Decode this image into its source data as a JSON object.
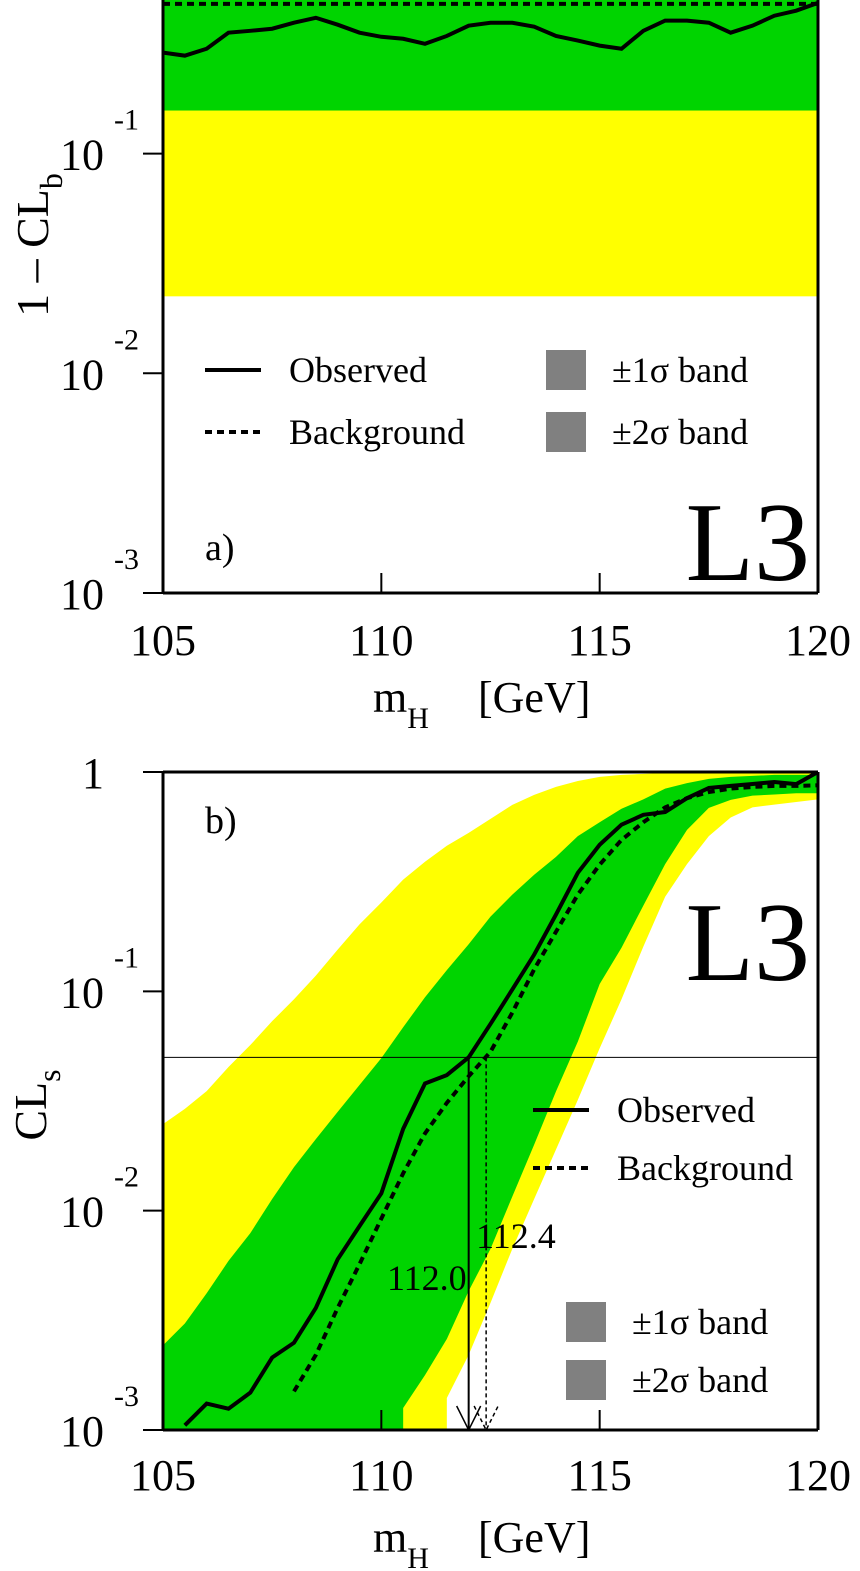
{
  "chart_data": [
    {
      "type": "line",
      "panel_label": "a)",
      "experiment": "L3",
      "xlabel": {
        "text": "m",
        "sub": "H",
        "unit": "[GeV]"
      },
      "ylabel": {
        "text": "1 – CL",
        "sub": "b"
      },
      "xlim": [
        105,
        120
      ],
      "ylim": [
        0.001,
        0.5
      ],
      "log_y": true,
      "xticks": [
        105,
        110,
        115,
        120
      ],
      "yticks": [
        {
          "value": 0.001,
          "label": "10",
          "exponent": "-3"
        },
        {
          "value": 0.01,
          "label": "10",
          "exponent": "-2"
        },
        {
          "value": 0.1,
          "label": "10",
          "exponent": "-1"
        }
      ],
      "x": [
        105,
        105.5,
        106,
        106.5,
        107,
        107.5,
        108,
        108.5,
        109,
        109.5,
        110,
        110.5,
        111,
        111.5,
        112,
        112.5,
        113,
        113.5,
        114,
        114.5,
        115,
        115.5,
        116,
        116.5,
        117,
        117.5,
        118,
        118.5,
        119,
        119.5,
        120
      ],
      "series": [
        {
          "name": "Observed",
          "color": "#000000",
          "style": "solid",
          "values": [
            0.288,
            0.279,
            0.3,
            0.355,
            0.362,
            0.37,
            0.394,
            0.415,
            0.386,
            0.355,
            0.34,
            0.333,
            0.316,
            0.343,
            0.382,
            0.394,
            0.394,
            0.378,
            0.343,
            0.327,
            0.31,
            0.3,
            0.362,
            0.403,
            0.403,
            0.394,
            0.355,
            0.382,
            0.424,
            0.447,
            0.485
          ]
        },
        {
          "name": "Background",
          "color": "#000000",
          "style": "dashed",
          "values": [
            0.48,
            0.48,
            0.48,
            0.48,
            0.48,
            0.48,
            0.48,
            0.48,
            0.48,
            0.48,
            0.48,
            0.48,
            0.48,
            0.48,
            0.48,
            0.48,
            0.48,
            0.48,
            0.48,
            0.48,
            0.48,
            0.48,
            0.48,
            0.48,
            0.48,
            0.48,
            0.48,
            0.48,
            0.48,
            0.48,
            0.48
          ]
        }
      ],
      "bands": [
        {
          "name": "±1σ band",
          "color": "#00d400",
          "lower": 0.157
        },
        {
          "name": "±2σ band",
          "color": "#ffff00",
          "lower": 0.0224
        }
      ],
      "legend_swatch_color": "#808080"
    },
    {
      "type": "line",
      "panel_label": "b)",
      "experiment": "L3",
      "xlabel": {
        "text": "m",
        "sub": "H",
        "unit": "[GeV]"
      },
      "ylabel": {
        "text": "CL",
        "sub": "s"
      },
      "xlim": [
        105,
        120
      ],
      "ylim": [
        0.001,
        1
      ],
      "log_y": true,
      "xticks": [
        105,
        110,
        115,
        120
      ],
      "yticks": [
        {
          "value": 0.001,
          "label": "10",
          "exponent": "-3"
        },
        {
          "value": 0.01,
          "label": "10",
          "exponent": "-2"
        },
        {
          "value": 0.1,
          "label": "10",
          "exponent": "-1"
        },
        1
      ],
      "x": [
        105,
        105.5,
        106,
        106.5,
        107,
        107.5,
        108,
        108.5,
        109,
        109.5,
        110,
        110.5,
        111,
        111.5,
        112,
        112.5,
        113,
        113.5,
        114,
        114.5,
        115,
        115.5,
        116,
        116.5,
        117,
        117.5,
        118,
        118.5,
        119,
        119.5,
        120
      ],
      "series": [
        {
          "name": "Observed",
          "color": "#000000",
          "style": "solid",
          "values": [
            null,
            0.00105,
            0.00132,
            0.00125,
            0.00148,
            0.00214,
            0.0025,
            0.0036,
            0.006,
            0.0085,
            0.012,
            0.0236,
            0.038,
            0.0415,
            0.05,
            0.071,
            0.102,
            0.147,
            0.224,
            0.347,
            0.466,
            0.575,
            0.638,
            0.657,
            0.76,
            0.846,
            0.864,
            0.882,
            0.9,
            0.88,
            1.0
          ]
        },
        {
          "name": "Background",
          "color": "#000000",
          "style": "dashed",
          "values": [
            null,
            null,
            null,
            null,
            null,
            null,
            0.0015,
            0.0022,
            0.0036,
            0.0057,
            0.0092,
            0.0148,
            0.0225,
            0.031,
            0.041,
            0.053,
            0.08,
            0.126,
            0.187,
            0.276,
            0.378,
            0.49,
            0.59,
            0.69,
            0.76,
            0.81,
            0.84,
            0.855,
            0.864,
            0.864,
            0.87
          ]
        }
      ],
      "bands": [
        {
          "name": "±1σ band",
          "color": "#00d400",
          "upper": [
            0.00243,
            0.00306,
            0.0042,
            0.0059,
            0.0079,
            0.0113,
            0.0158,
            0.0212,
            0.0282,
            0.0374,
            0.0496,
            0.0686,
            0.094,
            0.125,
            0.164,
            0.219,
            0.276,
            0.34,
            0.41,
            0.51,
            0.59,
            0.68,
            0.75,
            0.84,
            0.89,
            0.93,
            0.95,
            0.96,
            0.97,
            0.97,
            0.97
          ],
          "lower": [
            null,
            null,
            null,
            null,
            null,
            null,
            null,
            null,
            null,
            null,
            null,
            0.00126,
            0.00178,
            0.0026,
            0.0043,
            0.0067,
            0.0116,
            0.02,
            0.035,
            0.059,
            0.108,
            0.158,
            0.246,
            0.38,
            0.545,
            0.686,
            0.746,
            0.78,
            0.79,
            0.8,
            0.8
          ]
        },
        {
          "name": "±2σ band",
          "color": "#ffff00",
          "upper": [
            0.0248,
            0.0291,
            0.0351,
            0.0452,
            0.0569,
            0.0731,
            0.092,
            0.118,
            0.155,
            0.202,
            0.254,
            0.323,
            0.39,
            0.461,
            0.528,
            0.611,
            0.708,
            0.786,
            0.855,
            0.91,
            0.95,
            0.97,
            0.98,
            0.99,
            0.99,
            0.99,
            0.99,
            0.99,
            0.99,
            0.99,
            0.99
          ],
          "lower": [
            null,
            null,
            null,
            null,
            null,
            null,
            null,
            null,
            null,
            null,
            null,
            null,
            null,
            0.0014,
            0.0022,
            0.0038,
            0.0067,
            0.0113,
            0.019,
            0.032,
            0.055,
            0.092,
            0.16,
            0.27,
            0.38,
            0.51,
            0.62,
            0.69,
            0.71,
            0.73,
            0.75
          ]
        }
      ],
      "legend_swatch_color": "#808080",
      "hline": 0.05,
      "annotations": [
        {
          "x": 112.0,
          "label": "112.0",
          "style": "solid"
        },
        {
          "x": 112.4,
          "label": "112.4",
          "style": "dashed"
        }
      ]
    }
  ]
}
